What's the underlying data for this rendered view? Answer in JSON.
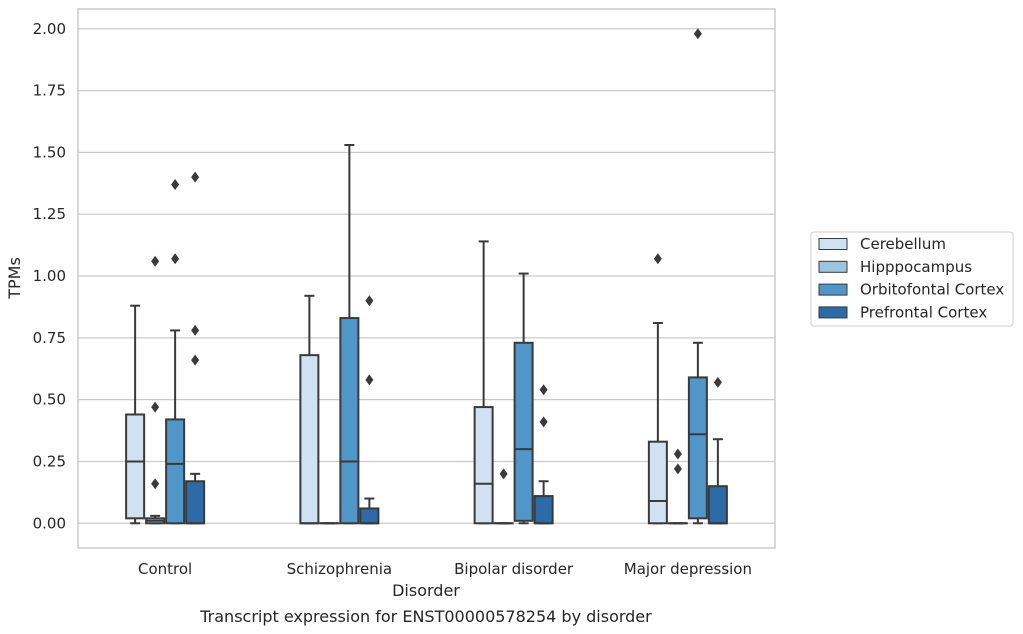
{
  "chart_data": {
    "type": "boxplot",
    "title": "",
    "caption": "Transcript expression for ENST00000578254 by disorder",
    "xlabel": "Disorder",
    "ylabel": "TPMs",
    "ylim": [
      -0.1,
      2.08
    ],
    "yticks": [
      "0.00",
      "0.25",
      "0.50",
      "0.75",
      "1.00",
      "1.25",
      "1.50",
      "1.75",
      "2.00"
    ],
    "grid": "horizontal",
    "legend_position": "right",
    "categories": [
      "Control",
      "Schizophrenia",
      "Bipolar disorder",
      "Major depression"
    ],
    "series": [
      {
        "name": "Cerebellum",
        "color": "#d0e1f2",
        "boxes": [
          {
            "whislo": 0.0,
            "q1": 0.02,
            "med": 0.25,
            "q3": 0.44,
            "whishi": 0.88,
            "fliers": []
          },
          {
            "whislo": 0.0,
            "q1": 0.0,
            "med": 0.0,
            "q3": 0.68,
            "whishi": 0.92,
            "fliers": []
          },
          {
            "whislo": 0.0,
            "q1": 0.0,
            "med": 0.16,
            "q3": 0.47,
            "whishi": 1.14,
            "fliers": []
          },
          {
            "whislo": 0.0,
            "q1": 0.0,
            "med": 0.09,
            "q3": 0.33,
            "whishi": 0.81,
            "fliers": [
              1.07
            ]
          }
        ]
      },
      {
        "name": "Hipppocampus",
        "color": "#9dc5df",
        "boxes": [
          {
            "whislo": 0.0,
            "q1": 0.0,
            "med": 0.01,
            "q3": 0.02,
            "whishi": 0.03,
            "fliers": [
              0.16,
              0.47,
              1.06
            ]
          },
          {
            "whislo": 0.0,
            "q1": 0.0,
            "med": 0.0,
            "q3": 0.0,
            "whishi": 0.0,
            "fliers": []
          },
          {
            "whislo": 0.0,
            "q1": 0.0,
            "med": 0.0,
            "q3": 0.0,
            "whishi": 0.0,
            "fliers": [
              0.2
            ]
          },
          {
            "whislo": 0.0,
            "q1": 0.0,
            "med": 0.0,
            "q3": 0.0,
            "whishi": 0.0,
            "fliers": [
              0.22,
              0.28
            ]
          }
        ]
      },
      {
        "name": "Orbitofontal Cortex",
        "color": "#5096c8",
        "boxes": [
          {
            "whislo": 0.0,
            "q1": 0.0,
            "med": 0.24,
            "q3": 0.42,
            "whishi": 0.78,
            "fliers": [
              1.07,
              1.37
            ]
          },
          {
            "whislo": 0.0,
            "q1": 0.0,
            "med": 0.25,
            "q3": 0.83,
            "whishi": 1.53,
            "fliers": []
          },
          {
            "whislo": 0.0,
            "q1": 0.01,
            "med": 0.3,
            "q3": 0.73,
            "whishi": 1.01,
            "fliers": []
          },
          {
            "whislo": 0.0,
            "q1": 0.02,
            "med": 0.36,
            "q3": 0.59,
            "whishi": 0.73,
            "fliers": [
              1.98
            ]
          }
        ]
      },
      {
        "name": "Prefrontal Cortex",
        "color": "#2d6aa8",
        "boxes": [
          {
            "whislo": 0.0,
            "q1": 0.0,
            "med": 0.0,
            "q3": 0.17,
            "whishi": 0.2,
            "fliers": [
              0.66,
              0.78,
              1.4
            ]
          },
          {
            "whislo": 0.0,
            "q1": 0.0,
            "med": 0.0,
            "q3": 0.06,
            "whishi": 0.1,
            "fliers": [
              0.58,
              0.9
            ]
          },
          {
            "whislo": 0.0,
            "q1": 0.0,
            "med": 0.0,
            "q3": 0.11,
            "whishi": 0.17,
            "fliers": [
              0.41,
              0.54
            ]
          },
          {
            "whislo": 0.0,
            "q1": 0.0,
            "med": 0.0,
            "q3": 0.15,
            "whishi": 0.34,
            "fliers": [
              0.57
            ]
          }
        ]
      }
    ]
  }
}
